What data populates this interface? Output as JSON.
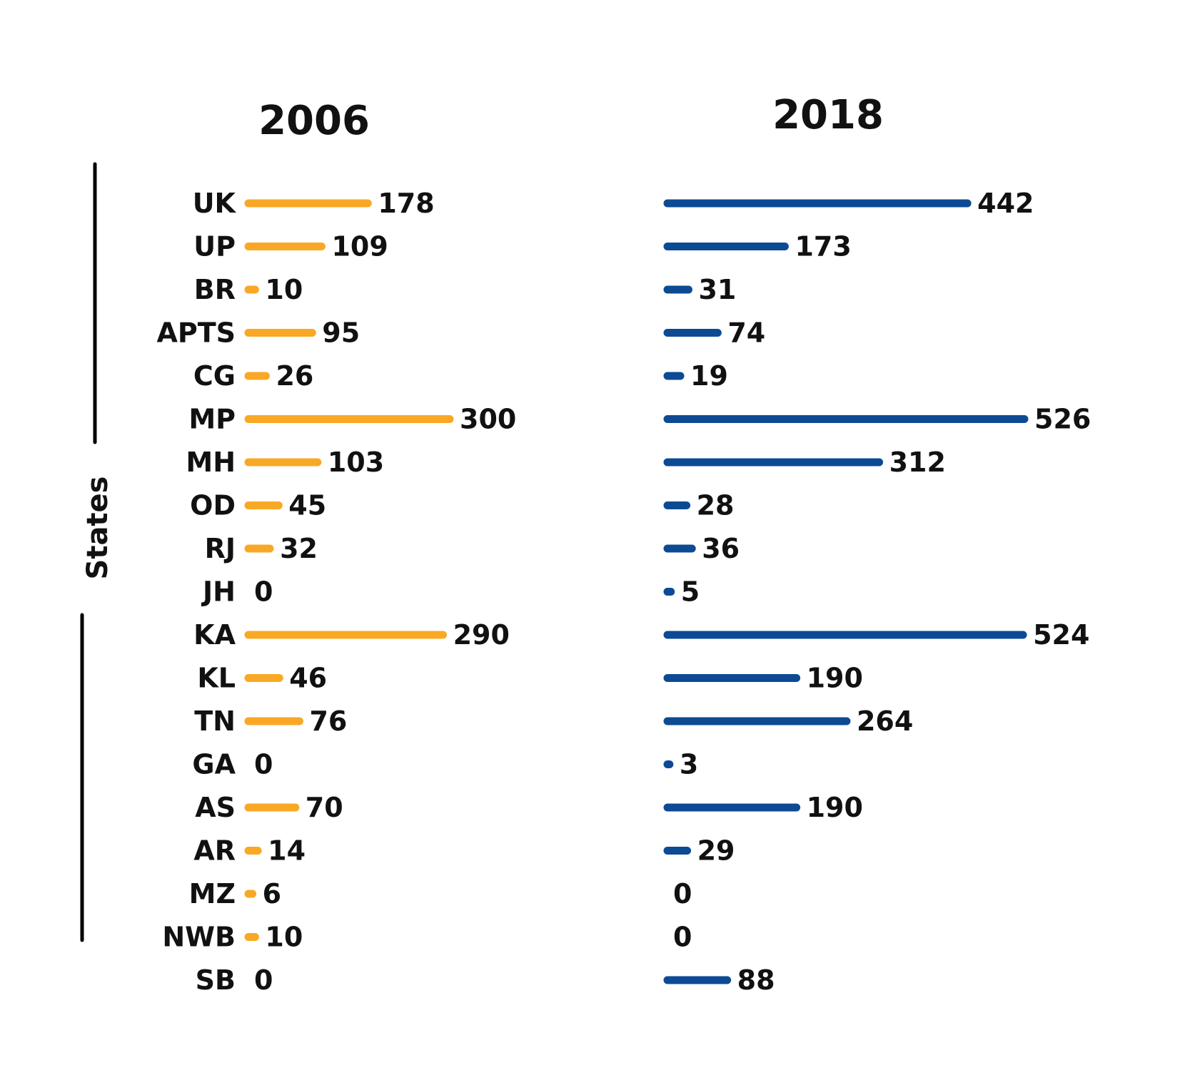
{
  "colors": {
    "series_2006": "#f9a825",
    "series_2018": "#0d4a94",
    "ink": "#111111"
  },
  "chart_data": [
    {
      "type": "bar",
      "orientation": "horizontal",
      "title": "2006",
      "ylabel": "States",
      "categories": [
        "UK",
        "UP",
        "BR",
        "APTS",
        "CG",
        "MP",
        "MH",
        "OD",
        "RJ",
        "JH",
        "KA",
        "KL",
        "TN",
        "GA",
        "AS",
        "AR",
        "MZ",
        "NWB",
        "SB"
      ],
      "values": [
        178,
        109,
        10,
        95,
        26,
        300,
        103,
        45,
        32,
        0,
        290,
        46,
        76,
        0,
        70,
        14,
        6,
        10,
        0
      ],
      "value_labels": [
        "178",
        "109",
        "10",
        "95",
        "26",
        "300",
        "103",
        "45",
        "32",
        "0",
        "290",
        "46",
        "76",
        "0",
        "70",
        "14",
        "6",
        "10",
        "0"
      ],
      "xlim": [
        0,
        300
      ],
      "grid": false,
      "legend": "none"
    },
    {
      "type": "bar",
      "orientation": "horizontal",
      "title": "2018",
      "categories": [
        "UK",
        "UP",
        "BR",
        "APTS",
        "CG",
        "MP",
        "MH",
        "OD",
        "RJ",
        "JH",
        "KA",
        "KL",
        "TN",
        "GA",
        "AS",
        "AR",
        "MZ",
        "NWB",
        "SB"
      ],
      "values": [
        442,
        173,
        31,
        74,
        19,
        526,
        312,
        28,
        36,
        5,
        524,
        190,
        264,
        3,
        190,
        29,
        0,
        0,
        88
      ],
      "value_labels": [
        "442",
        "173",
        "31",
        "74",
        "19",
        "526",
        "312",
        "28",
        "36",
        "5",
        "524",
        "190",
        "264",
        "3",
        "190",
        "29",
        "0",
        "0",
        "88"
      ],
      "xlim": [
        0,
        526
      ],
      "grid": false,
      "legend": "none"
    }
  ]
}
